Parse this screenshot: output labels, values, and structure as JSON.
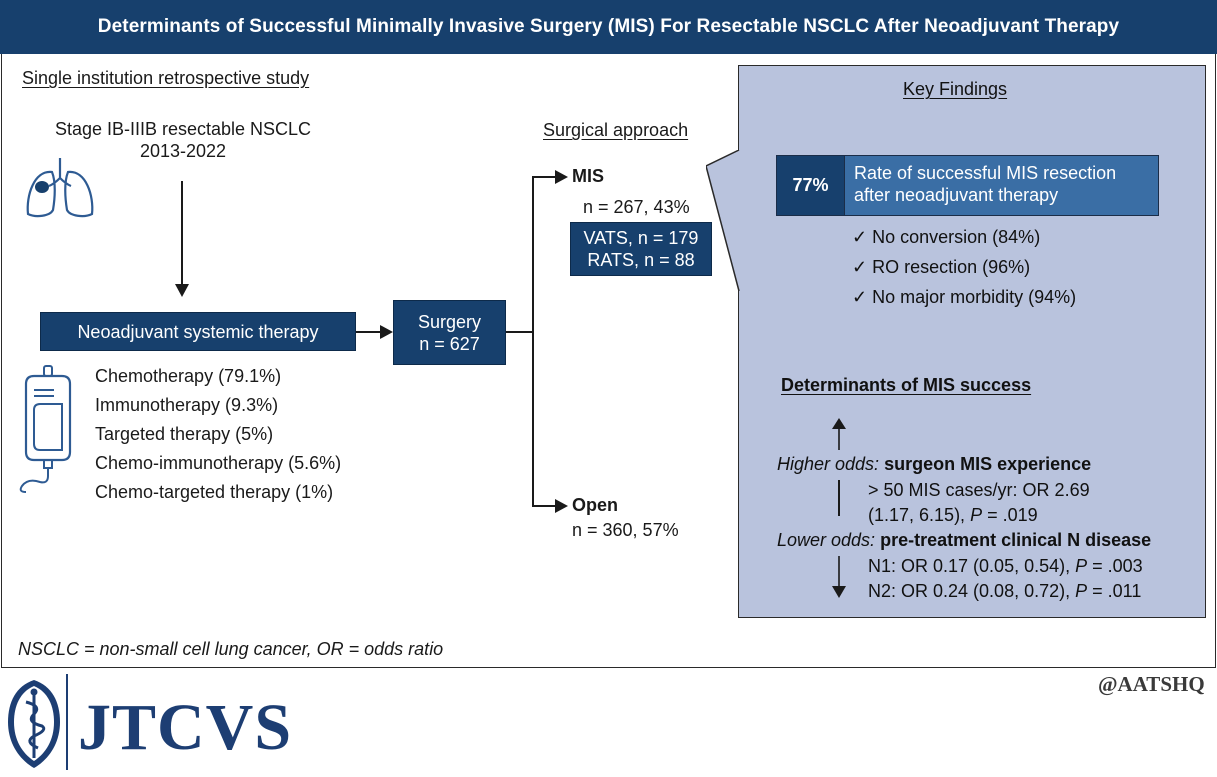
{
  "title": "Determinants of Successful Minimally Invasive Surgery (MIS) For Resectable NSCLC After Neoadjuvant Therapy",
  "study_design": "Single institution retrospective study",
  "population": {
    "line1": "Stage IB-IIIB resectable NSCLC",
    "line2": "2013-2022"
  },
  "neoadjuvant": {
    "label": "Neoadjuvant systemic therapy",
    "therapies": [
      "Chemotherapy (79.1%)",
      "Immunotherapy (9.3%)",
      "Targeted therapy (5%)",
      "Chemo-immunotherapy (5.6%)",
      "Chemo-targeted therapy (1%)"
    ]
  },
  "surgery": {
    "line1": "Surgery",
    "line2": "n = 627"
  },
  "surgical_approach": {
    "heading": "Surgical approach",
    "mis_label": "MIS",
    "mis_count": "n = 267, 43%",
    "vats": "VATS, n = 179",
    "rats": "RATS, n = 88",
    "open_label": "Open",
    "open_count": "n = 360, 57%"
  },
  "key_findings": {
    "heading": "Key Findings",
    "rate_value": "77%",
    "rate_line1": "Rate of successful MIS resection",
    "rate_line2": "after neoadjuvant therapy",
    "checks": [
      "No conversion (84%)",
      "RO resection (96%)",
      "No major morbidity (94%)"
    ],
    "check_mark": "✓",
    "determinants_heading": "Determinants of MIS success",
    "higher_prefix": "Higher odds:",
    "higher_factor": "surgeon MIS experience",
    "higher_line1": "> 50 MIS cases/yr: OR 2.69",
    "higher_line2_pre": "(1.17, 6.15), ",
    "higher_line2_p": "P",
    "higher_line2_post": " = .019",
    "lower_prefix": "Lower odds:",
    "lower_factor": "pre-treatment clinical N disease",
    "n1_pre": "N1: OR 0.17 (0.05, 0.54), ",
    "n1_p": "P",
    "n1_post": " = .003",
    "n2_pre": "N2: OR 0.24 (0.08, 0.72), ",
    "n2_p": "P",
    "n2_post": " = .011"
  },
  "footnote": "NSCLC = non-small cell lung cancer, OR = odds ratio",
  "journal": "JTCVS",
  "handle": "@AATSHQ",
  "icons": [
    "lungs-icon",
    "iv-bag-icon",
    "caduceus-logo-icon"
  ],
  "colors": {
    "navy": "#17406d",
    "panel": "#b9c3dd",
    "rate_blue": "#3a6ea5",
    "logo_blue": "#1d3e73"
  }
}
